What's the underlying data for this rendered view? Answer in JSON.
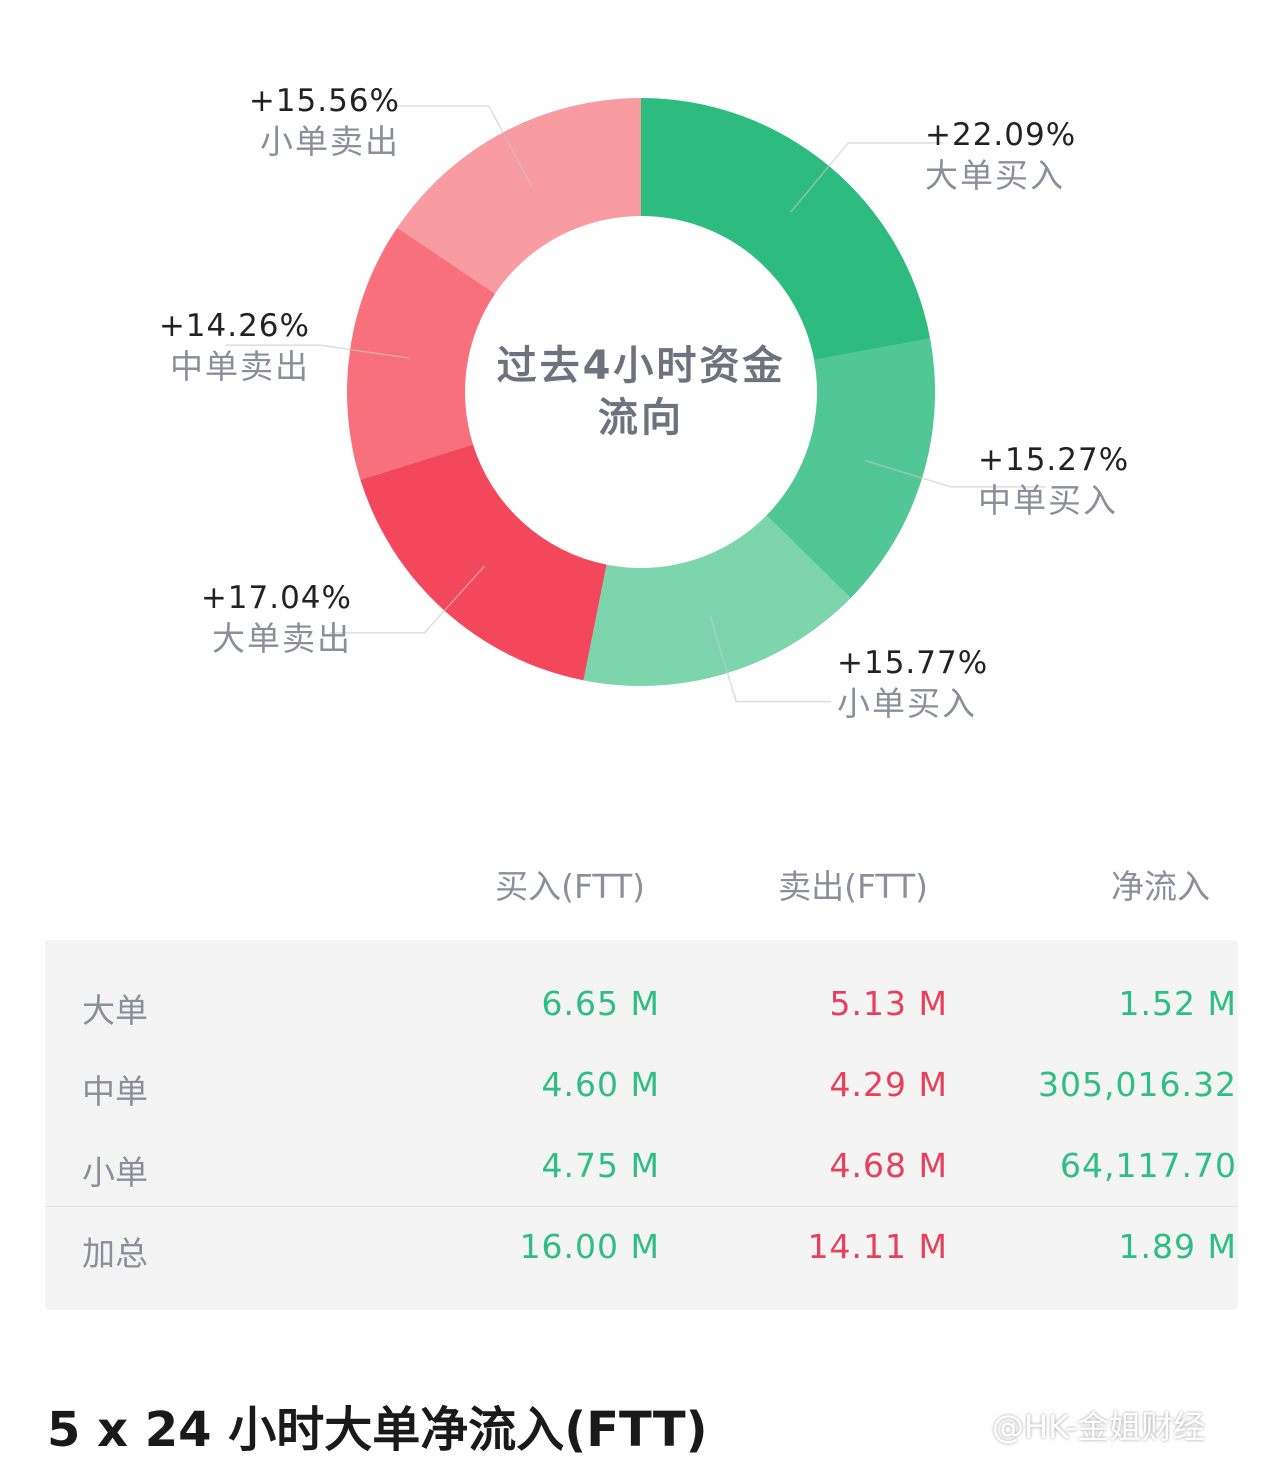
{
  "chart_data": {
    "type": "pie",
    "style": "donut",
    "title": "过去4小时资金流向",
    "slices": [
      {
        "name": "大单买入",
        "label": "+22.09%",
        "value": 22.09,
        "color": "#2dbb80"
      },
      {
        "name": "中单买入",
        "label": "+15.27%",
        "value": 15.27,
        "color": "#50c794"
      },
      {
        "name": "小单买入",
        "label": "+15.77%",
        "value": 15.77,
        "color": "#7dd5ae"
      },
      {
        "name": "大单卖出",
        "label": "+17.04%",
        "value": 17.04,
        "color": "#f3485c"
      },
      {
        "name": "中单卖出",
        "label": "+14.26%",
        "value": 14.26,
        "color": "#f8707c"
      },
      {
        "name": "小单卖出",
        "label": "+15.56%",
        "value": 15.56,
        "color": "#f99ca1"
      }
    ]
  },
  "table": {
    "headers": [
      "买入(FTT)",
      "卖出(FTT)",
      "净流入"
    ],
    "rows": [
      {
        "name": "大单",
        "buy": "6.65 M",
        "sell": "5.13 M",
        "net": "1.52 M"
      },
      {
        "name": "中单",
        "buy": "4.60 M",
        "sell": "4.29 M",
        "net": "305,016.32"
      },
      {
        "name": "小单",
        "buy": "4.75 M",
        "sell": "4.68 M",
        "net": "64,117.70"
      },
      {
        "name": "加总",
        "buy": "16.00 M",
        "sell": "14.11 M",
        "net": "1.89 M"
      }
    ]
  },
  "colors": {
    "positive": "#2ebd85",
    "negative": "#e8405a"
  },
  "section_title": "5 x 24 小时大单净流入(FTT)",
  "watermark": "@HK-金姐财经"
}
